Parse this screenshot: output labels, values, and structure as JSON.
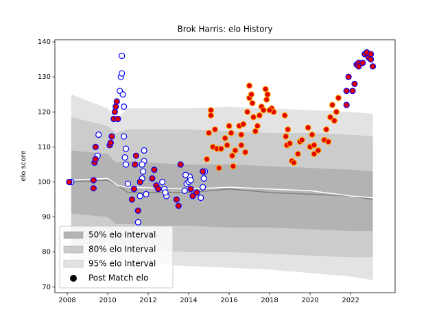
{
  "chart_data": {
    "type": "scatter",
    "title": "Brok Harris: elo History",
    "ylabel": "elo score",
    "xlim": [
      2007.39,
      2024.2
    ],
    "ylim": [
      68.4,
      140.6
    ],
    "xticks": [
      2008,
      2010,
      2012,
      2014,
      2016,
      2018,
      2020,
      2022
    ],
    "yticks": [
      70,
      80,
      90,
      100,
      110,
      120,
      130,
      140
    ],
    "legend": "lower left",
    "marker_label": "Post Match elo",
    "marker_legend_color": "#000000",
    "bands": [
      {
        "name": "95% elo Interval",
        "color": "#e3e3e3",
        "x": [
          2008.2,
          2010.0,
          2010.4,
          2011.0,
          2012.0,
          2014.0,
          2016.0,
          2018.0,
          2020.0,
          2022.0,
          2023.1
        ],
        "upper": [
          125,
          121,
          118,
          121,
          121,
          121,
          121.5,
          121,
          120.5,
          120,
          119.5
        ],
        "lower": [
          76,
          79,
          77.5,
          77,
          76.5,
          76,
          75.5,
          75,
          74,
          73,
          72
        ]
      },
      {
        "name": "80% elo Interval",
        "color": "#cccccc",
        "x": [
          2008.2,
          2010.0,
          2010.4,
          2011.0,
          2012.0,
          2014.0,
          2016.0,
          2018.0,
          2020.0,
          2022.0,
          2023.1
        ],
        "upper": [
          118.5,
          116,
          114,
          115,
          115,
          115,
          114.5,
          114,
          114,
          113.5,
          113
        ],
        "lower": [
          81.5,
          83,
          81.5,
          81,
          80.5,
          80,
          80,
          79.5,
          79,
          78.5,
          78.5
        ]
      },
      {
        "name": "50% elo Interval",
        "color": "#b3b3b3",
        "x": [
          2008.2,
          2010.0,
          2010.4,
          2011.0,
          2012.0,
          2014.0,
          2016.0,
          2018.0,
          2020.0,
          2022.0,
          2023.1
        ],
        "upper": [
          109,
          108,
          105.5,
          106,
          105.5,
          105,
          105,
          104.5,
          104,
          103.5,
          103
        ],
        "lower": [
          91,
          90,
          88,
          88,
          87.5,
          87.5,
          87,
          87,
          86.5,
          86,
          86
        ]
      }
    ],
    "lines": [
      {
        "color": "#808080",
        "x": [
          2008.0,
          2010.0,
          2010.5,
          2011.0,
          2014.0,
          2016.0,
          2018.0,
          2020.0,
          2022.0,
          2023.1
        ],
        "values": [
          100,
          100.5,
          99,
          97,
          97,
          98,
          97,
          96.5,
          96,
          95
        ]
      },
      {
        "color": "#ffffff",
        "x": [
          2008.0,
          2010.0,
          2010.5,
          2011.0,
          2014.0,
          2016.0,
          2018.0,
          2020.0,
          2022.0,
          2023.1
        ],
        "values": [
          100.5,
          101,
          99,
          98.5,
          98,
          98.5,
          98,
          97.5,
          96,
          95.5
        ]
      }
    ],
    "series": [
      {
        "color": "#ffffff",
        "edgecolor": "#0000ff",
        "x": [
          2008.2,
          2009.5,
          2009.55,
          2010.6,
          2010.65,
          2010.7,
          2010.7,
          2010.75,
          2010.8,
          2010.8,
          2010.85,
          2010.9,
          2010.9,
          2011.0,
          2011.5,
          2011.6,
          2011.7,
          2011.75,
          2011.8,
          2011.8,
          2011.7,
          2012.9,
          2012.8,
          2012.7,
          2013.8,
          2013.9,
          2014.0,
          2014.05,
          2014.1,
          2014.6,
          2014.7,
          2014.75,
          2014.8,
          2011.9,
          2012.85,
          2013.85
        ],
        "values": [
          100,
          107.5,
          113.5,
          126,
          130,
          131,
          136,
          125,
          121.5,
          113,
          107,
          105,
          109.5,
          99.5,
          88.5,
          96,
          101,
          103,
          109,
          106,
          105,
          96,
          98,
          100,
          97.5,
          99.5,
          100,
          101.5,
          100.5,
          95.5,
          98.5,
          101,
          103,
          96.5,
          97,
          102
        ]
      },
      {
        "color": "#e00000",
        "edgecolor": "#0000ff",
        "x": [
          2008.1,
          2009.3,
          2009.3,
          2009.35,
          2009.4,
          2009.4,
          2010.1,
          2010.15,
          2010.2,
          2010.3,
          2010.35,
          2010.4,
          2010.45,
          2010.5,
          2011.2,
          2011.3,
          2011.35,
          2011.4,
          2011.5,
          2011.6,
          2012.2,
          2012.3,
          2012.4,
          2012.5,
          2013.4,
          2013.5,
          2013.6,
          2014.1,
          2014.2,
          2014.4,
          2014.7,
          2021.8,
          2021.8,
          2021.9,
          2022.1,
          2022.2,
          2022.3,
          2022.4,
          2022.6,
          2022.7,
          2022.8,
          2022.9,
          2023.0,
          2023.1,
          2022.4,
          2023.0
        ],
        "values": [
          100,
          98.2,
          100.5,
          105.5,
          106.5,
          110,
          110.5,
          111.2,
          113,
          118,
          120,
          121.5,
          123,
          118,
          95,
          98,
          105,
          107.5,
          91.8,
          100,
          101,
          103.5,
          99,
          98,
          95,
          93.2,
          105,
          98,
          96,
          97,
          103,
          122,
          126,
          130,
          126,
          128,
          133.5,
          134,
          134,
          136.5,
          137,
          135.5,
          136.5,
          133,
          133,
          135
        ]
      },
      {
        "color": "#e00000",
        "edgecolor": "#ffa500",
        "x": [
          2014.9,
          2015.0,
          2015.1,
          2015.1,
          2015.2,
          2015.3,
          2015.4,
          2015.5,
          2015.6,
          2015.8,
          2015.9,
          2016.0,
          2016.1,
          2016.15,
          2016.2,
          2016.3,
          2016.5,
          2016.6,
          2016.6,
          2016.7,
          2016.8,
          2016.9,
          2017.0,
          2017.0,
          2017.1,
          2017.15,
          2017.2,
          2017.3,
          2017.4,
          2017.5,
          2017.6,
          2017.7,
          2017.8,
          2017.85,
          2017.9,
          2018.1,
          2018.2,
          2018.75,
          2018.8,
          2018.85,
          2018.9,
          2019.0,
          2019.1,
          2019.2,
          2019.4,
          2019.5,
          2019.6,
          2019.9,
          2020.0,
          2020.1,
          2020.2,
          2020.4,
          2020.7,
          2020.8,
          2020.9,
          2021.0,
          2021.1,
          2021.2,
          2021.3,
          2021.4,
          2020.2,
          2018.0
        ],
        "values": [
          106.5,
          114,
          120.5,
          119,
          110,
          115,
          109.5,
          104,
          109.5,
          112.5,
          110.5,
          116,
          114,
          107.5,
          104.5,
          109,
          116,
          113.5,
          110.5,
          116.5,
          108.5,
          120,
          124,
          127.5,
          125,
          122.5,
          118.5,
          114.5,
          116,
          119,
          121.5,
          120.5,
          126.5,
          123.5,
          125,
          121,
          120,
          119,
          113,
          110.5,
          115,
          111,
          106,
          105.5,
          108,
          111.5,
          112,
          115.5,
          110,
          113.5,
          108,
          109,
          112,
          115,
          111.5,
          118.5,
          122,
          117.5,
          120,
          124,
          110.5,
          120.5
        ]
      }
    ]
  }
}
